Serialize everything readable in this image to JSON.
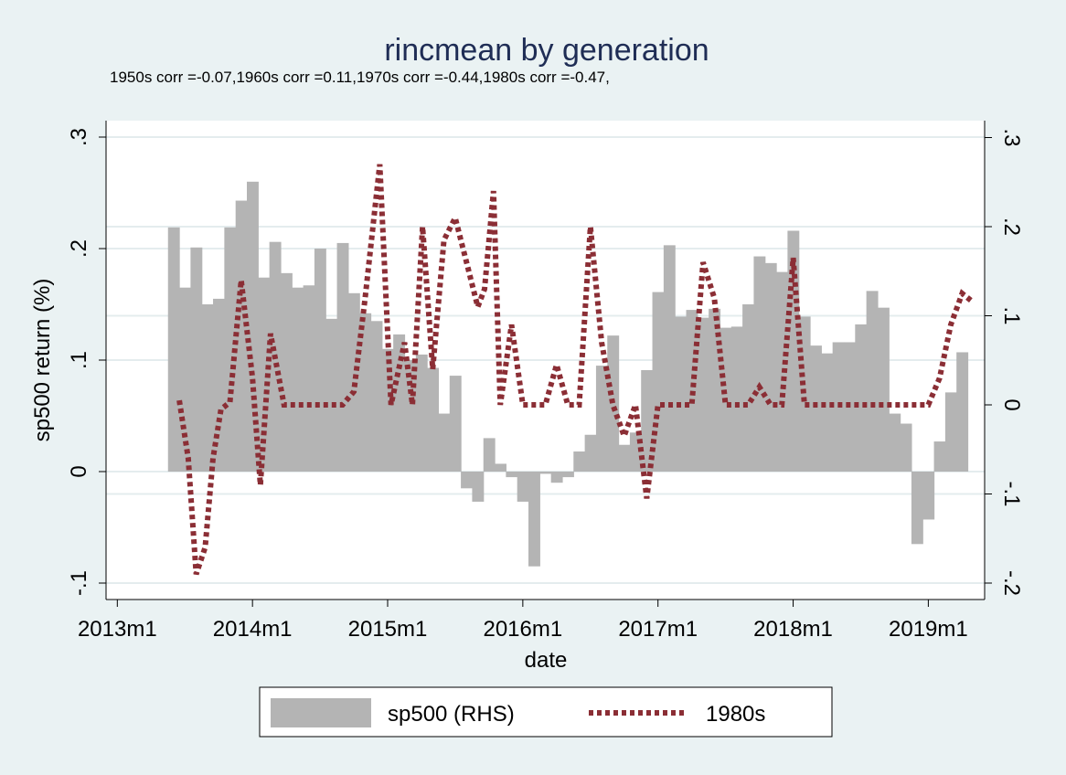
{
  "chart_data": {
    "type": "bar+line",
    "title": "rincmean by generation",
    "subtitle": "1950s corr =-0.07,1960s corr =0.11,1970s corr =-0.44,1980s corr =-0.47,",
    "xlabel": "date",
    "ylabel_left": "sp500 return (%)",
    "x_ticks": [
      "2013m1",
      "2014m1",
      "2015m1",
      "2016m1",
      "2017m1",
      "2018m1",
      "2019m1"
    ],
    "y_left_ticks": [
      {
        "value": 0.3,
        "label": ".3"
      },
      {
        "value": 0.2,
        "label": ".2"
      },
      {
        "value": 0.1,
        "label": ".1"
      },
      {
        "value": 0,
        "label": "0"
      },
      {
        "value": -0.1,
        "label": "-.1"
      }
    ],
    "y_right_ticks": [
      {
        "value": 0.3,
        "label": ".3"
      },
      {
        "value": 0.2,
        "label": ".2"
      },
      {
        "value": 0.1,
        "label": ".1"
      },
      {
        "value": 0,
        "label": "0"
      },
      {
        "value": -0.1,
        "label": "-.1"
      },
      {
        "value": -0.2,
        "label": "-.2"
      }
    ],
    "y_left_range": [
      -0.1,
      0.3
    ],
    "y_right_range": [
      -0.2,
      0.3
    ],
    "x_range_months": [
      -1,
      77
    ],
    "grid": true,
    "legend_position": "bottom",
    "colors": {
      "bars": "#b4b4b4",
      "line": "#8b2e35",
      "title": "#1f2d55",
      "plot_bg": "#ffffff",
      "page_bg": "#eaf2f3"
    },
    "series": [
      {
        "name": "sp500 (RHS)",
        "type": "bar",
        "axis": "left",
        "start": "2013m6",
        "values": [
          0.219,
          0.165,
          0.201,
          0.15,
          0.155,
          0.219,
          0.243,
          0.26,
          0.174,
          0.206,
          0.178,
          0.165,
          0.167,
          0.2,
          0.137,
          0.205,
          0.16,
          0.142,
          0.135,
          0.11,
          0.123,
          0.1,
          0.105,
          0.093,
          0.052,
          0.086,
          -0.015,
          -0.027,
          0.03,
          0.007,
          -0.005,
          -0.027,
          -0.085,
          -0.002,
          -0.01,
          -0.005,
          0.018,
          0.033,
          0.095,
          0.122,
          0.024,
          0.035,
          0.091,
          0.161,
          0.203,
          0.139,
          0.145,
          0.138,
          0.146,
          0.129,
          0.13,
          0.15,
          0.193,
          0.187,
          0.179,
          0.216,
          0.139,
          0.113,
          0.106,
          0.116,
          0.116,
          0.132,
          0.162,
          0.147,
          0.052,
          0.043,
          -0.065,
          -0.043,
          0.027,
          0.071,
          0.107
        ]
      },
      {
        "name": "1980s",
        "type": "line",
        "style": "dotted",
        "axis": "right",
        "points": [
          [
            5.5,
            0.005
          ],
          [
            6.3,
            -0.06
          ],
          [
            7.0,
            -0.19
          ],
          [
            7.8,
            -0.16
          ],
          [
            8.5,
            -0.06
          ],
          [
            9.2,
            -0.005
          ],
          [
            10,
            0.003
          ],
          [
            11,
            0.14
          ],
          [
            12,
            0.03
          ],
          [
            12.7,
            -0.09
          ],
          [
            13.6,
            0.08
          ],
          [
            14.8,
            0.0
          ],
          [
            16,
            0.0
          ],
          [
            18,
            0.0
          ],
          [
            20,
            0.0
          ],
          [
            21,
            0.015
          ],
          [
            22,
            0.12
          ],
          [
            23.3,
            0.27
          ],
          [
            24.3,
            0.0
          ],
          [
            25.5,
            0.07
          ],
          [
            26.2,
            0.0
          ],
          [
            27.1,
            0.2
          ],
          [
            28,
            0.04
          ],
          [
            29,
            0.185
          ],
          [
            30,
            0.21
          ],
          [
            31,
            0.16
          ],
          [
            32,
            0.11
          ],
          [
            32.6,
            0.13
          ],
          [
            33.4,
            0.24
          ],
          [
            34,
            0.0
          ],
          [
            35,
            0.09
          ],
          [
            36,
            0.0
          ],
          [
            37,
            0.0
          ],
          [
            38,
            0.0
          ],
          [
            39,
            0.045
          ],
          [
            40,
            0.0
          ],
          [
            41,
            0.0
          ],
          [
            42,
            0.2
          ],
          [
            43,
            0.07
          ],
          [
            44,
            0.0
          ],
          [
            45,
            -0.035
          ],
          [
            46,
            0.0
          ],
          [
            47,
            -0.105
          ],
          [
            48,
            0.0
          ],
          [
            49,
            0.0
          ],
          [
            50,
            0.0
          ],
          [
            51,
            0.0
          ],
          [
            52,
            0.16
          ],
          [
            53,
            0.12
          ],
          [
            54,
            0.0
          ],
          [
            55,
            0.0
          ],
          [
            56,
            0.0
          ],
          [
            57,
            0.02
          ],
          [
            58,
            0.0
          ],
          [
            59,
            0.0
          ],
          [
            60,
            0.165
          ],
          [
            61,
            0.0
          ],
          [
            62,
            0.0
          ],
          [
            64,
            0.0
          ],
          [
            66,
            0.0
          ],
          [
            68,
            0.0
          ],
          [
            70,
            0.0
          ],
          [
            72,
            0.0
          ],
          [
            73,
            0.03
          ],
          [
            74,
            0.09
          ],
          [
            75,
            0.125
          ],
          [
            76,
            0.115
          ]
        ]
      }
    ]
  }
}
